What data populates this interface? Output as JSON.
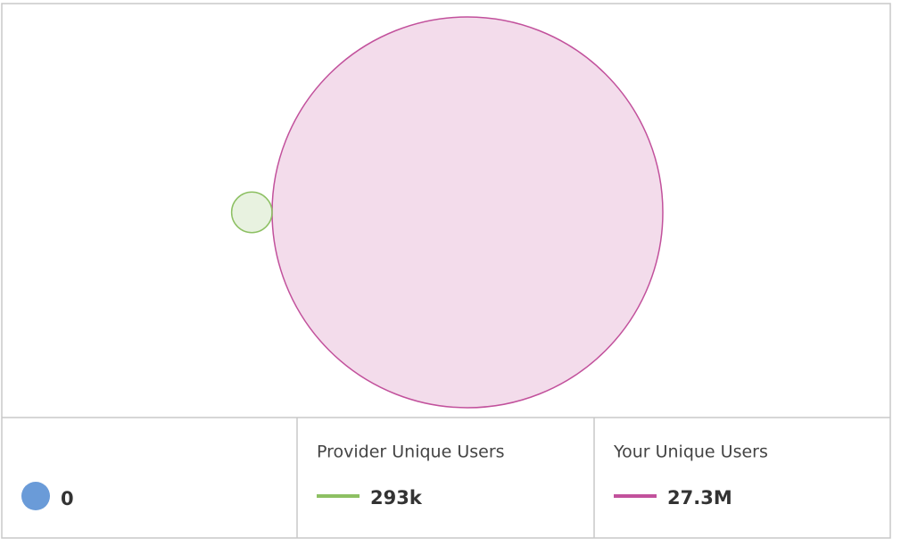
{
  "chart_data": {
    "type": "venn",
    "overlap": {
      "color": "#6a9bd8",
      "values": [
        0
      ]
    },
    "series": [
      {
        "name": "Provider Unique Users",
        "color": "#8dc063",
        "values": [
          293000
        ],
        "value_labels": [
          "293k"
        ]
      },
      {
        "name": "Your Unique Users",
        "color": "#c2519c",
        "values": [
          27300000
        ],
        "value_labels": [
          "27.3M"
        ]
      }
    ]
  }
}
